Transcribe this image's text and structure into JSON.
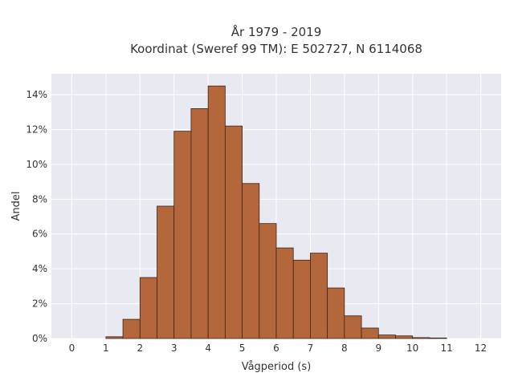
{
  "chart_data": {
    "type": "bar",
    "title": [
      "År 1979 - 2019",
      "Koordinat (Sweref 99 TM): E 502727, N 6114068"
    ],
    "xlabel": "Vågperiod (s)",
    "ylabel": "Andel",
    "x_ticks": [
      0,
      1,
      2,
      3,
      4,
      5,
      6,
      7,
      8,
      9,
      10,
      11,
      12
    ],
    "y_ticks": [
      0,
      2,
      4,
      6,
      8,
      10,
      12,
      14
    ],
    "y_tick_suffix": "%",
    "xlim": [
      -0.6,
      12.6
    ],
    "ylim": [
      0,
      15.2
    ],
    "bin_width": 0.5,
    "bins": [
      {
        "start": 1.0,
        "value": 0.1
      },
      {
        "start": 1.5,
        "value": 1.1
      },
      {
        "start": 2.0,
        "value": 3.5
      },
      {
        "start": 2.5,
        "value": 7.6
      },
      {
        "start": 3.0,
        "value": 11.9
      },
      {
        "start": 3.5,
        "value": 13.2
      },
      {
        "start": 4.0,
        "value": 14.5
      },
      {
        "start": 4.5,
        "value": 12.2
      },
      {
        "start": 5.0,
        "value": 8.9
      },
      {
        "start": 5.5,
        "value": 6.6
      },
      {
        "start": 6.0,
        "value": 5.2
      },
      {
        "start": 6.5,
        "value": 4.5
      },
      {
        "start": 7.0,
        "value": 4.9
      },
      {
        "start": 7.5,
        "value": 2.9
      },
      {
        "start": 8.0,
        "value": 1.3
      },
      {
        "start": 8.5,
        "value": 0.6
      },
      {
        "start": 9.0,
        "value": 0.2
      },
      {
        "start": 9.5,
        "value": 0.15
      },
      {
        "start": 10.0,
        "value": 0.05
      },
      {
        "start": 10.5,
        "value": 0.03
      }
    ],
    "grid": true,
    "colors": {
      "bar_fill": "#b5673c",
      "bar_edge": "#3a2418",
      "plot_background": "#e9e9f1",
      "grid": "#ffffff"
    }
  }
}
